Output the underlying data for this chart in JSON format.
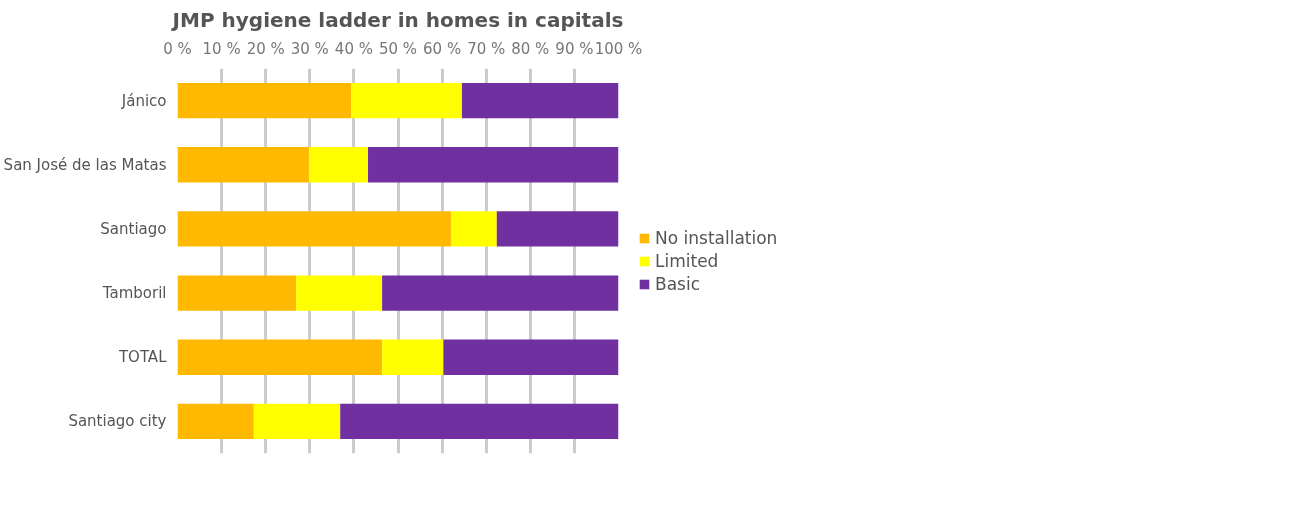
{
  "chart_data": {
    "type": "bar",
    "orientation": "horizontal",
    "stacked": true,
    "title": "JMP hygiene ladder in homes in capitals",
    "categories": [
      "Jánico",
      "San José de las Matas",
      "Santiago",
      "Tamboril",
      "TOTAL",
      "Santiago city"
    ],
    "series": [
      {
        "name": "No installation",
        "color": "#ffb900",
        "values": [
          39.4,
          29.8,
          62.0,
          26.9,
          46.4,
          17.3
        ]
      },
      {
        "name": "Limited",
        "color": "#ffff00",
        "values": [
          25.1,
          13.4,
          10.4,
          19.5,
          13.9,
          19.6
        ]
      },
      {
        "name": "Basic",
        "color": "#7030a0",
        "values": [
          35.5,
          56.8,
          27.6,
          53.6,
          39.7,
          63.1
        ]
      }
    ],
    "xlim": [
      0,
      100
    ],
    "xticks": [
      {
        "value": 0,
        "label": "0 %"
      },
      {
        "value": 10,
        "label": "10 %"
      },
      {
        "value": 20,
        "label": "20 %"
      },
      {
        "value": 30,
        "label": "30 %"
      },
      {
        "value": 40,
        "label": "40 %"
      },
      {
        "value": 50,
        "label": "50 %"
      },
      {
        "value": 60,
        "label": "60 %"
      },
      {
        "value": 70,
        "label": "70 %"
      },
      {
        "value": 80,
        "label": "80 %"
      },
      {
        "value": 90,
        "label": "90 %"
      },
      {
        "value": 100,
        "label": "100 %"
      }
    ],
    "grid": "x",
    "legend": "right"
  }
}
